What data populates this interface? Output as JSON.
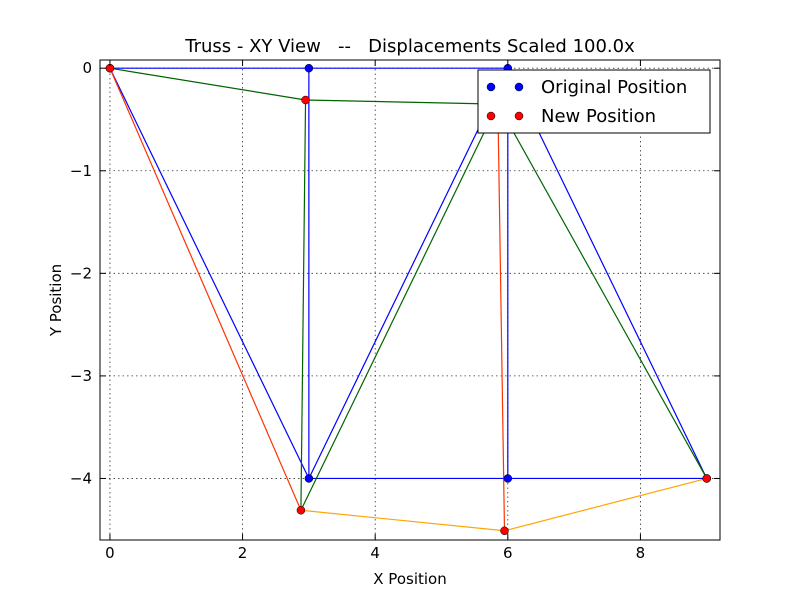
{
  "chart_data": {
    "type": "line",
    "title": "Truss - XY View   --   Displacements Scaled 100.0x",
    "xlabel": "X Position",
    "ylabel": "Y Position",
    "xlim": [
      -0.15,
      9.2
    ],
    "ylim": [
      -4.6,
      0.08
    ],
    "xticks": [
      0,
      2,
      4,
      6,
      8
    ],
    "yticks": [
      0,
      -1,
      -2,
      -3,
      -4
    ],
    "xtick_labels": [
      "0",
      "2",
      "4",
      "6",
      "8"
    ],
    "ytick_labels": [
      "0",
      "−1",
      "−2",
      "−3",
      "−4"
    ],
    "grid": true,
    "legend": {
      "placement": "top-right",
      "entries": [
        {
          "label": "Original Position",
          "color": "#0000ff"
        },
        {
          "label": "New Position",
          "color": "#ff0000"
        }
      ]
    },
    "colors": {
      "original": "#0000ff",
      "new_position": "#ff0000",
      "compression": "#006400",
      "tension": "#ff3300",
      "bottom_chord": "#ffa500"
    },
    "original_nodes": [
      [
        0,
        0
      ],
      [
        3,
        0
      ],
      [
        6,
        0
      ],
      [
        3,
        -4
      ],
      [
        6,
        -4
      ],
      [
        9,
        -4
      ]
    ],
    "original_members": [
      [
        0,
        1
      ],
      [
        1,
        2
      ],
      [
        0,
        3
      ],
      [
        1,
        3
      ],
      [
        2,
        3
      ],
      [
        2,
        4
      ],
      [
        2,
        5
      ],
      [
        3,
        4
      ],
      [
        4,
        5
      ]
    ],
    "new_nodes": [
      [
        0,
        0
      ],
      [
        2.95,
        -0.31
      ],
      [
        5.85,
        -0.35
      ],
      [
        2.88,
        -4.31
      ],
      [
        5.95,
        -4.51
      ],
      [
        9,
        -4
      ]
    ],
    "new_members": [
      {
        "from": 0,
        "to": 1,
        "color": "#006400"
      },
      {
        "from": 1,
        "to": 2,
        "color": "#006400"
      },
      {
        "from": 0,
        "to": 3,
        "color": "#ff3300"
      },
      {
        "from": 1,
        "to": 3,
        "color": "#006400"
      },
      {
        "from": 2,
        "to": 3,
        "color": "#006400"
      },
      {
        "from": 2,
        "to": 4,
        "color": "#ff3300"
      },
      {
        "from": 2,
        "to": 5,
        "color": "#006400"
      },
      {
        "from": 3,
        "to": 4,
        "color": "#ffa500"
      },
      {
        "from": 4,
        "to": 5,
        "color": "#ffa500"
      }
    ]
  }
}
